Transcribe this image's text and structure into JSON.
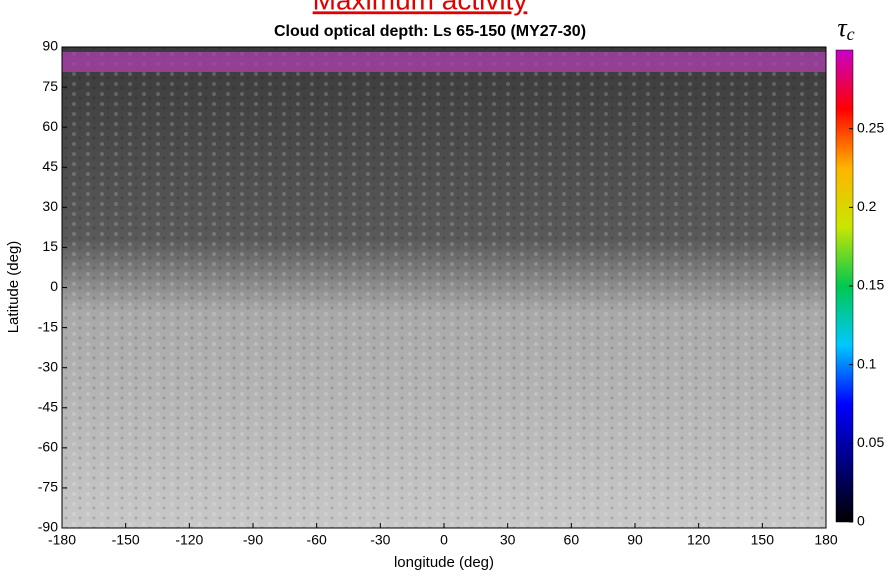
{
  "header": "Maximum activity",
  "chart_data": {
    "type": "map",
    "title": "Cloud optical depth: Ls 65-150 (MY27-30)",
    "x_label": "longitude (deg)",
    "y_label": "Latitude (deg)",
    "xlim": [
      -180,
      180
    ],
    "xticks": [
      -180,
      -150,
      -120,
      -90,
      -60,
      -30,
      0,
      30,
      60,
      90,
      120,
      150,
      180
    ],
    "ylim": [
      -90,
      90
    ],
    "yticks": [
      -90,
      -75,
      -60,
      -45,
      -30,
      -15,
      0,
      15,
      30,
      45,
      60,
      75,
      90
    ],
    "colorbar": {
      "label": {
        "symbol": "τ",
        "subscript": "c"
      },
      "lim": [
        0,
        0.3
      ],
      "ticks": [
        0,
        0.05,
        0.1,
        0.15,
        0.2,
        0.25
      ],
      "colors": [
        "#000000",
        "#00007f",
        "#0000ff",
        "#00c8ff",
        "#00c850",
        "#c8e600",
        "#ffb400",
        "#ff0000",
        "#c800c8"
      ]
    }
  }
}
